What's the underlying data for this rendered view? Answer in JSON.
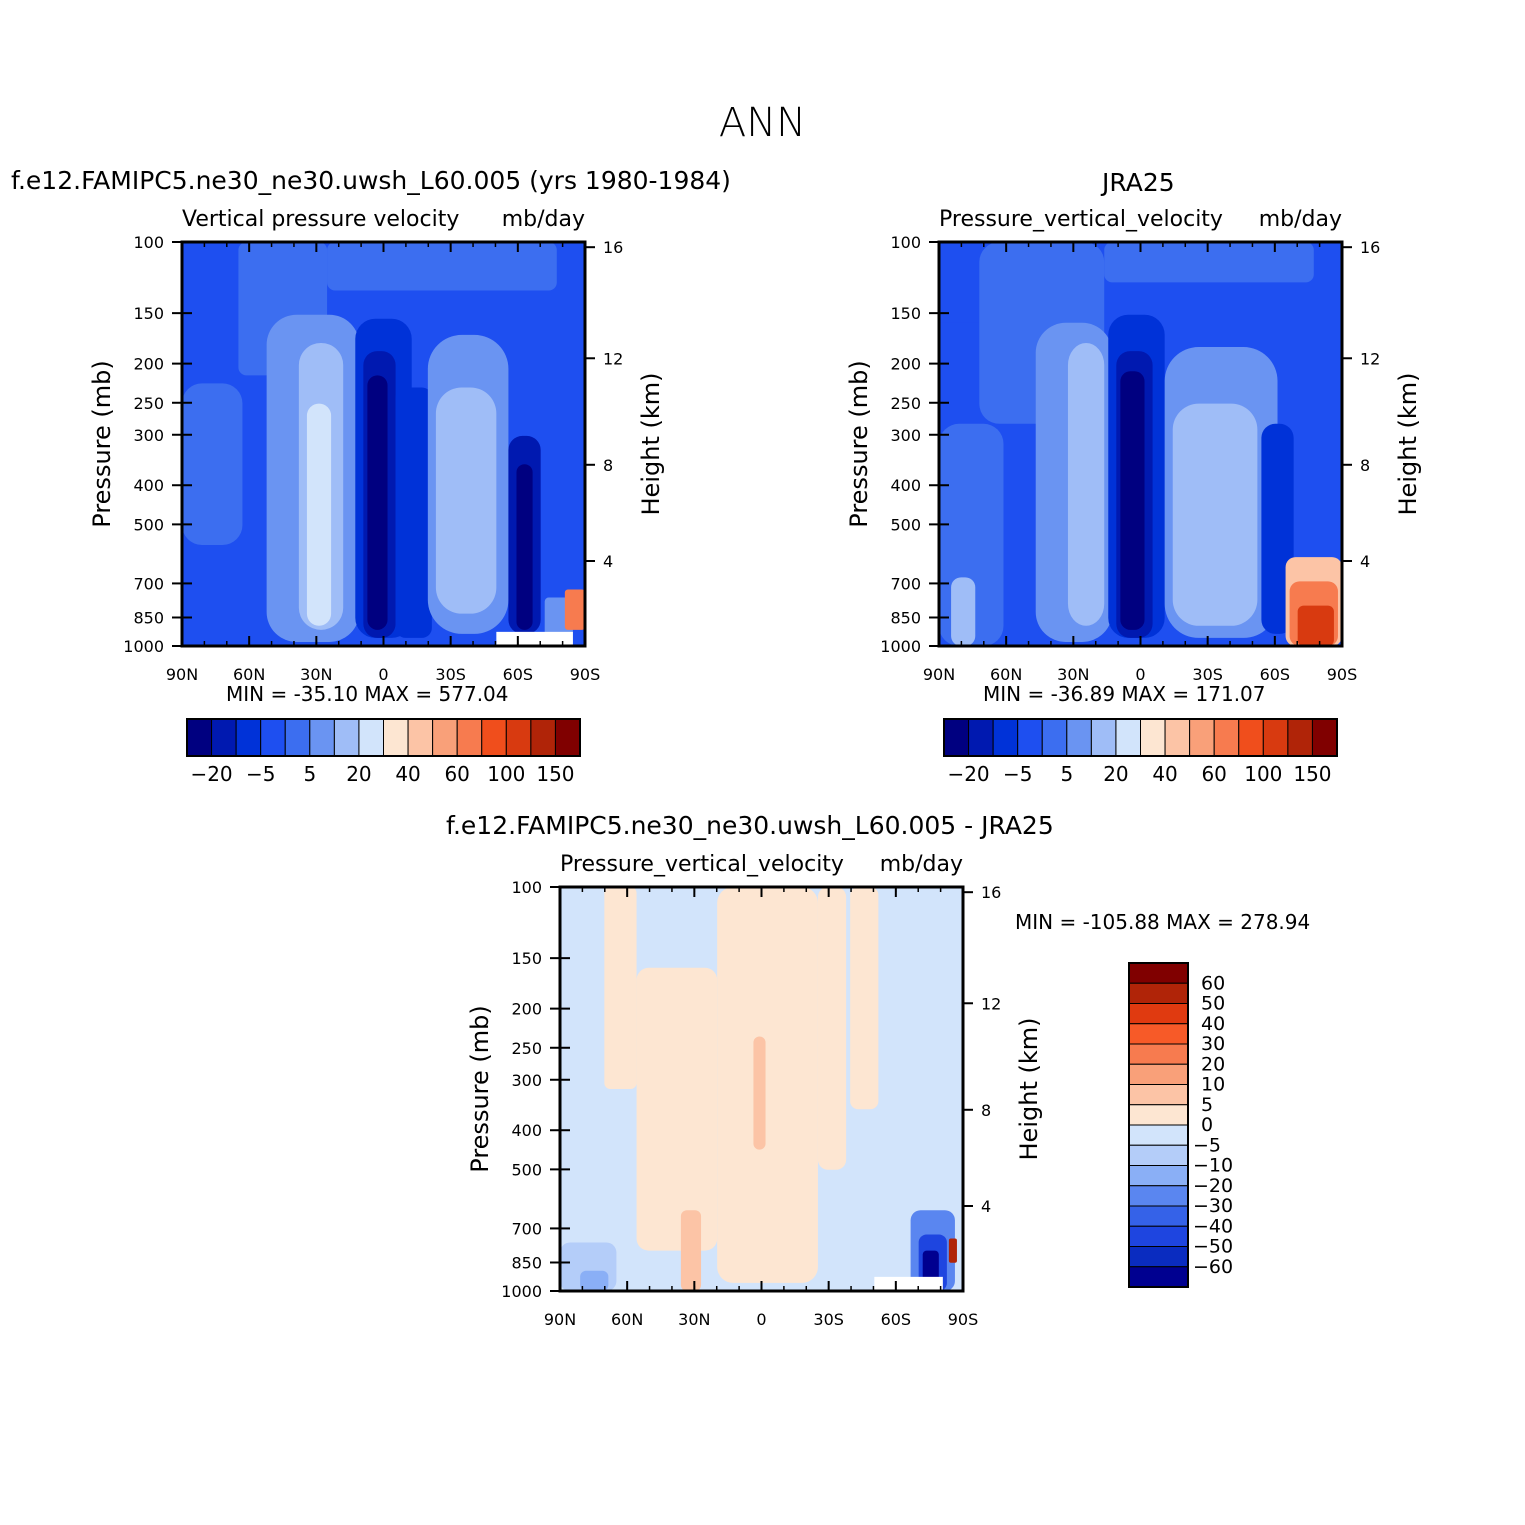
{
  "figure": {
    "title": "ANN"
  },
  "panels": [
    {
      "title": "f.e12.FAMIPC5.ne30_ne30.uwsh_L60.005 (yrs 1980-1984)",
      "subtitle_left": "Vertical pressure velocity",
      "subtitle_right": "mb/day",
      "stats": "MIN = -35.10   MAX = 577.04"
    },
    {
      "title": "JRA25",
      "subtitle_left": "Pressure_vertical_velocity",
      "subtitle_right": "mb/day",
      "stats": "MIN = -36.89   MAX = 171.07"
    },
    {
      "title": "f.e12.FAMIPC5.ne30_ne30.uwsh_L60.005 - JRA25",
      "subtitle_left": "Pressure_vertical_velocity",
      "subtitle_right": "mb/day",
      "stats": "MIN = -105.88   MAX = 278.94"
    }
  ],
  "axes": {
    "ylabel_left": "Pressure (mb)",
    "ylabel_right": "Height (km)",
    "pressure_ticks": [
      "100",
      "150",
      "200",
      "250",
      "300",
      "400",
      "500",
      "700",
      "850",
      "1000"
    ],
    "height_ticks": [
      "16",
      "12",
      "8",
      "4"
    ],
    "lat_ticks": [
      "90N",
      "60N",
      "30N",
      "0",
      "30S",
      "60S",
      "90S"
    ]
  },
  "colorbars": {
    "horizontal_labels": [
      "-20",
      "-5",
      "5",
      "20",
      "40",
      "60",
      "100",
      "150"
    ],
    "horizontal_colors": [
      "#000080",
      "#0019b0",
      "#0032d8",
      "#1e4ff0",
      "#3c6ef0",
      "#6a94f2",
      "#9fbdf7",
      "#d2e4fb",
      "#fde6d2",
      "#fcc4a6",
      "#f9a079",
      "#f77b4f",
      "#f04e1c",
      "#d83a10",
      "#b02408",
      "#800000"
    ],
    "vertical_labels": [
      "60",
      "50",
      "40",
      "30",
      "20",
      "10",
      "5",
      "0",
      "-5",
      "-10",
      "-20",
      "-30",
      "-40",
      "-50",
      "-60"
    ],
    "vertical_colors": [
      "#800000",
      "#b02408",
      "#e03a10",
      "#f75a28",
      "#f77b4f",
      "#f9a079",
      "#fcc4a6",
      "#fde6d2",
      "#d2e4fb",
      "#b4cdf9",
      "#8aaff6",
      "#5a86f0",
      "#3562e8",
      "#1e45e0",
      "#0a2cc0",
      "#000090"
    ]
  },
  "chart_data": [
    {
      "type": "heatmap",
      "title": "f.e12.FAMIPC5.ne30_ne30.uwsh_L60.005 (yrs 1980-1984)",
      "variable": "Vertical pressure velocity",
      "units": "mb/day",
      "x": [
        "90N",
        "60N",
        "30N",
        "0",
        "30S",
        "60S",
        "90S"
      ],
      "y_pressure_mb": [
        100,
        150,
        200,
        250,
        300,
        400,
        500,
        700,
        850,
        1000
      ],
      "y_height_km": [
        16,
        12,
        8,
        4
      ],
      "levels": [
        -20,
        -5,
        5,
        20,
        40,
        60,
        100,
        150
      ],
      "min": -35.1,
      "max": 577.04,
      "xlabel": "",
      "ylabel": "Pressure (mb)",
      "ylabel_right": "Height (km)"
    },
    {
      "type": "heatmap",
      "title": "JRA25",
      "variable": "Pressure_vertical_velocity",
      "units": "mb/day",
      "x": [
        "90N",
        "60N",
        "30N",
        "0",
        "30S",
        "60S",
        "90S"
      ],
      "y_pressure_mb": [
        100,
        150,
        200,
        250,
        300,
        400,
        500,
        700,
        850,
        1000
      ],
      "y_height_km": [
        16,
        12,
        8,
        4
      ],
      "levels": [
        -20,
        -5,
        5,
        20,
        40,
        60,
        100,
        150
      ],
      "min": -36.89,
      "max": 171.07,
      "xlabel": "",
      "ylabel": "Pressure (mb)",
      "ylabel_right": "Height (km)"
    },
    {
      "type": "heatmap",
      "title": "f.e12.FAMIPC5.ne30_ne30.uwsh_L60.005 - JRA25",
      "variable": "Pressure_vertical_velocity",
      "units": "mb/day",
      "x": [
        "90N",
        "60N",
        "30N",
        "0",
        "30S",
        "60S",
        "90S"
      ],
      "y_pressure_mb": [
        100,
        150,
        200,
        250,
        300,
        400,
        500,
        700,
        850,
        1000
      ],
      "y_height_km": [
        16,
        12,
        8,
        4
      ],
      "levels": [
        -60,
        -50,
        -40,
        -30,
        -20,
        -10,
        -5,
        0,
        5,
        10,
        20,
        30,
        40,
        50,
        60
      ],
      "min": -105.88,
      "max": 278.94,
      "xlabel": "",
      "ylabel": "Pressure (mb)",
      "ylabel_right": "Height (km)"
    }
  ]
}
